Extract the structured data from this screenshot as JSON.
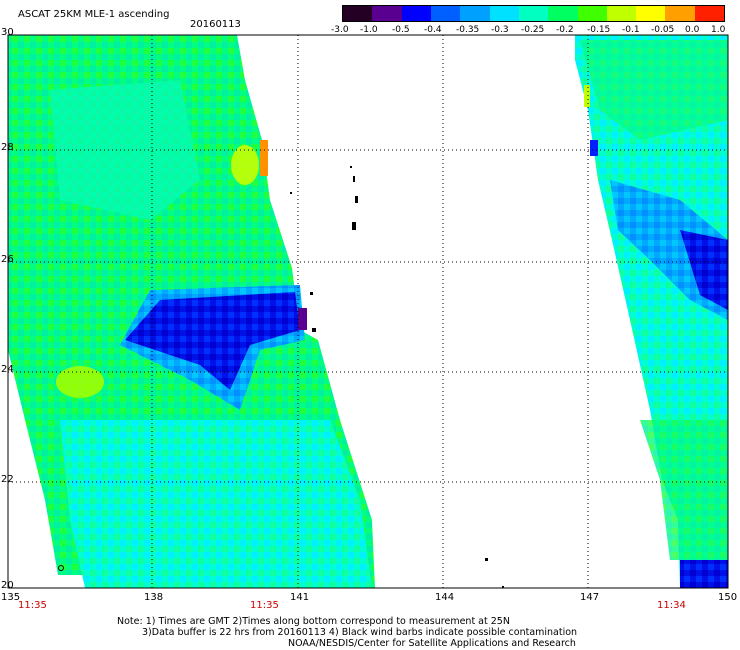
{
  "header": {
    "product": "ASCAT 25KM MLE-1 ascending",
    "date": "20160113"
  },
  "colorbar": {
    "labels": [
      "-3.0",
      "-1.0",
      "-0.5",
      "-0.4",
      "-0.35",
      "-0.3",
      "-0.25",
      "-0.2",
      "-0.15",
      "-0.1",
      "-0.05",
      "0.0",
      "1.0"
    ],
    "colors": [
      "#240024",
      "#5a0090",
      "#0000ff",
      "#0060ff",
      "#00a0ff",
      "#00e0ff",
      "#00ffc0",
      "#00ff60",
      "#40ff00",
      "#c0ff00",
      "#ffff00",
      "#ffa000",
      "#ff2000"
    ]
  },
  "map": {
    "lon_ticks": [
      "135",
      "138",
      "141",
      "144",
      "147",
      "150"
    ],
    "lat_ticks": [
      "30",
      "28",
      "26",
      "24",
      "22",
      "20"
    ],
    "lon_range": [
      135,
      150
    ],
    "lat_range": [
      20,
      30
    ]
  },
  "pass_times": [
    "11:35",
    "11:35",
    "11:34"
  ],
  "footer": {
    "line1": "Note: 1) Times are GMT 2)Times along bottom correspond to measurement at 25N",
    "line2": "3)Data buffer is 22 hrs from 20160113 4) Black wind barbs indicate possible contamination",
    "line3": "NOAA/NESDIS/Center for Satellite Applications and Research"
  }
}
